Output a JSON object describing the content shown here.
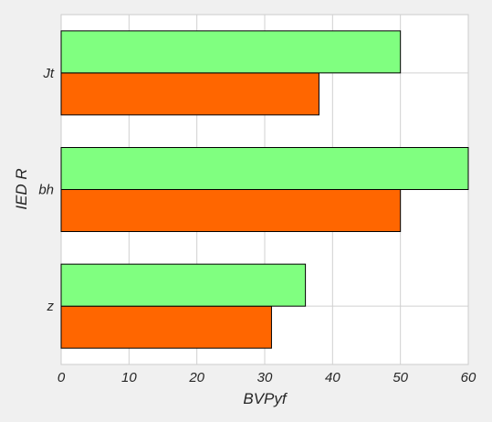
{
  "chart_data": {
    "type": "bar",
    "orientation": "horizontal",
    "categories": [
      "z",
      "bh",
      "Jt"
    ],
    "series": [
      {
        "values": [
          31,
          50,
          38
        ],
        "color": "#ff6600"
      },
      {
        "values": [
          36,
          60,
          50
        ],
        "color": "#80ff80"
      }
    ],
    "xlabel": "BVPyf",
    "ylabel": "IED R",
    "xlim": [
      0,
      60
    ],
    "xticks": [
      0,
      10,
      20,
      30,
      40,
      50,
      60
    ],
    "grid": true,
    "background_color": "#ffffff",
    "figure_color": "#f0f0f0",
    "edge_color": "#000000"
  }
}
